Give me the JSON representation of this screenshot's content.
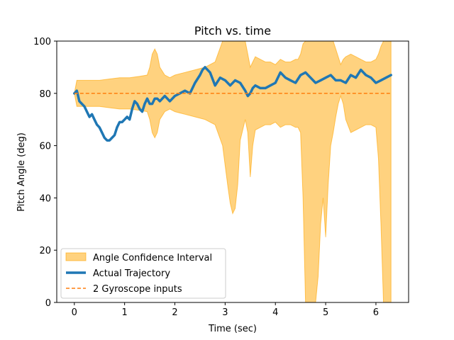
{
  "chart_data": {
    "type": "line",
    "title": "Pitch vs. time",
    "xlabel": "Time (sec)",
    "ylabel": "Pitch Angle (deg)",
    "xlim": [
      -0.35,
      6.65
    ],
    "ylim": [
      0,
      100
    ],
    "xticks": [
      0,
      1,
      2,
      3,
      4,
      5,
      6
    ],
    "yticks": [
      0,
      20,
      40,
      60,
      80,
      100
    ],
    "grid": false,
    "legend_position": "lower-left",
    "colors": {
      "ci": "#ffa500",
      "trajectory": "#1f77b4",
      "gyro": "#ff7f0e"
    },
    "legend": [
      "Angle Confidence Interval",
      "Actual Trajectory",
      "2 Gyroscope inputs"
    ],
    "series": [
      {
        "name": "Actual Trajectory",
        "x": [
          0.0,
          0.05,
          0.1,
          0.15,
          0.2,
          0.25,
          0.3,
          0.35,
          0.4,
          0.45,
          0.5,
          0.55,
          0.6,
          0.65,
          0.7,
          0.75,
          0.8,
          0.85,
          0.9,
          0.95,
          1.0,
          1.05,
          1.1,
          1.15,
          1.2,
          1.25,
          1.3,
          1.35,
          1.4,
          1.45,
          1.5,
          1.55,
          1.6,
          1.65,
          1.7,
          1.75,
          1.8,
          1.85,
          1.9,
          1.95,
          2.0,
          2.1,
          2.2,
          2.3,
          2.4,
          2.5,
          2.55,
          2.6,
          2.7,
          2.8,
          2.9,
          3.0,
          3.1,
          3.2,
          3.3,
          3.4,
          3.45,
          3.5,
          3.55,
          3.6,
          3.7,
          3.8,
          3.9,
          4.0,
          4.1,
          4.2,
          4.3,
          4.4,
          4.5,
          4.6,
          4.7,
          4.8,
          4.9,
          5.0,
          5.1,
          5.2,
          5.3,
          5.4,
          5.5,
          5.6,
          5.7,
          5.8,
          5.9,
          6.0,
          6.1,
          6.2,
          6.3
        ],
        "y": [
          80,
          81,
          77,
          76,
          75,
          73,
          71,
          72,
          70,
          68,
          67,
          65,
          63,
          62,
          62,
          63,
          64,
          67,
          69,
          69,
          70,
          71,
          70,
          74,
          77,
          76,
          74,
          73,
          76,
          78,
          76,
          76,
          78,
          78,
          77,
          78,
          79,
          78,
          77,
          78,
          79,
          80,
          81,
          80,
          84,
          87,
          89,
          90,
          88,
          83,
          86,
          85,
          83,
          85,
          84,
          81,
          79,
          80,
          82,
          83,
          82,
          82,
          83,
          84,
          88,
          86,
          85,
          84,
          87,
          88,
          86,
          84,
          85,
          86,
          87,
          85,
          85,
          84,
          87,
          86,
          89,
          87,
          86,
          84,
          85,
          86,
          87
        ],
        "width": 3.5
      },
      {
        "name": "2 Gyroscope inputs",
        "x": [
          0,
          6.3
        ],
        "y": [
          80,
          80
        ],
        "dashed": true
      }
    ],
    "confidence_interval": {
      "name": "Angle Confidence Interval",
      "x": [
        0.0,
        0.05,
        0.1,
        0.3,
        0.5,
        0.7,
        0.9,
        1.1,
        1.3,
        1.45,
        1.5,
        1.55,
        1.6,
        1.65,
        1.7,
        1.8,
        1.9,
        2.0,
        2.2,
        2.4,
        2.6,
        2.8,
        2.95,
        3.05,
        3.1,
        3.15,
        3.2,
        3.25,
        3.3,
        3.4,
        3.45,
        3.5,
        3.55,
        3.6,
        3.7,
        3.8,
        3.9,
        4.0,
        4.1,
        4.2,
        4.3,
        4.4,
        4.45,
        4.5,
        4.55,
        4.6,
        4.65,
        4.7,
        4.75,
        4.8,
        4.85,
        4.9,
        4.95,
        5.0,
        5.05,
        5.1,
        5.15,
        5.2,
        5.25,
        5.3,
        5.35,
        5.4,
        5.5,
        5.6,
        5.7,
        5.8,
        5.9,
        6.0,
        6.05,
        6.1,
        6.15,
        6.2,
        6.25,
        6.3
      ],
      "upper": [
        80,
        85,
        85,
        85,
        85,
        85.5,
        86,
        86,
        86.5,
        87,
        90,
        95,
        97,
        95,
        90,
        87,
        86,
        87,
        88,
        89,
        90,
        92,
        100,
        100,
        100,
        100,
        100,
        100,
        100,
        100,
        95,
        90,
        92,
        94,
        93,
        92,
        92,
        91,
        93,
        92,
        92,
        93,
        93,
        95,
        99,
        100,
        100,
        100,
        100,
        100,
        100,
        100,
        100,
        100,
        100,
        100,
        100,
        97,
        94,
        91,
        93,
        94,
        95,
        94,
        93,
        92,
        92,
        93,
        95,
        98,
        100,
        100,
        100,
        100
      ],
      "lower": [
        80,
        75,
        75,
        75,
        75,
        74.5,
        74,
        74,
        73.5,
        73,
        70,
        65,
        63,
        65,
        70,
        73,
        74,
        73,
        72,
        71,
        70,
        68,
        60,
        45,
        38,
        34,
        36,
        45,
        62,
        70,
        65,
        48,
        60,
        66,
        67,
        68,
        68,
        69,
        67,
        68,
        68,
        67,
        67,
        65,
        40,
        0,
        0,
        0,
        0,
        0,
        10,
        30,
        40,
        25,
        45,
        60,
        65,
        71,
        76,
        79,
        76,
        70,
        65,
        66,
        67,
        68,
        68,
        67,
        55,
        30,
        0,
        0,
        0,
        0
      ]
    }
  }
}
